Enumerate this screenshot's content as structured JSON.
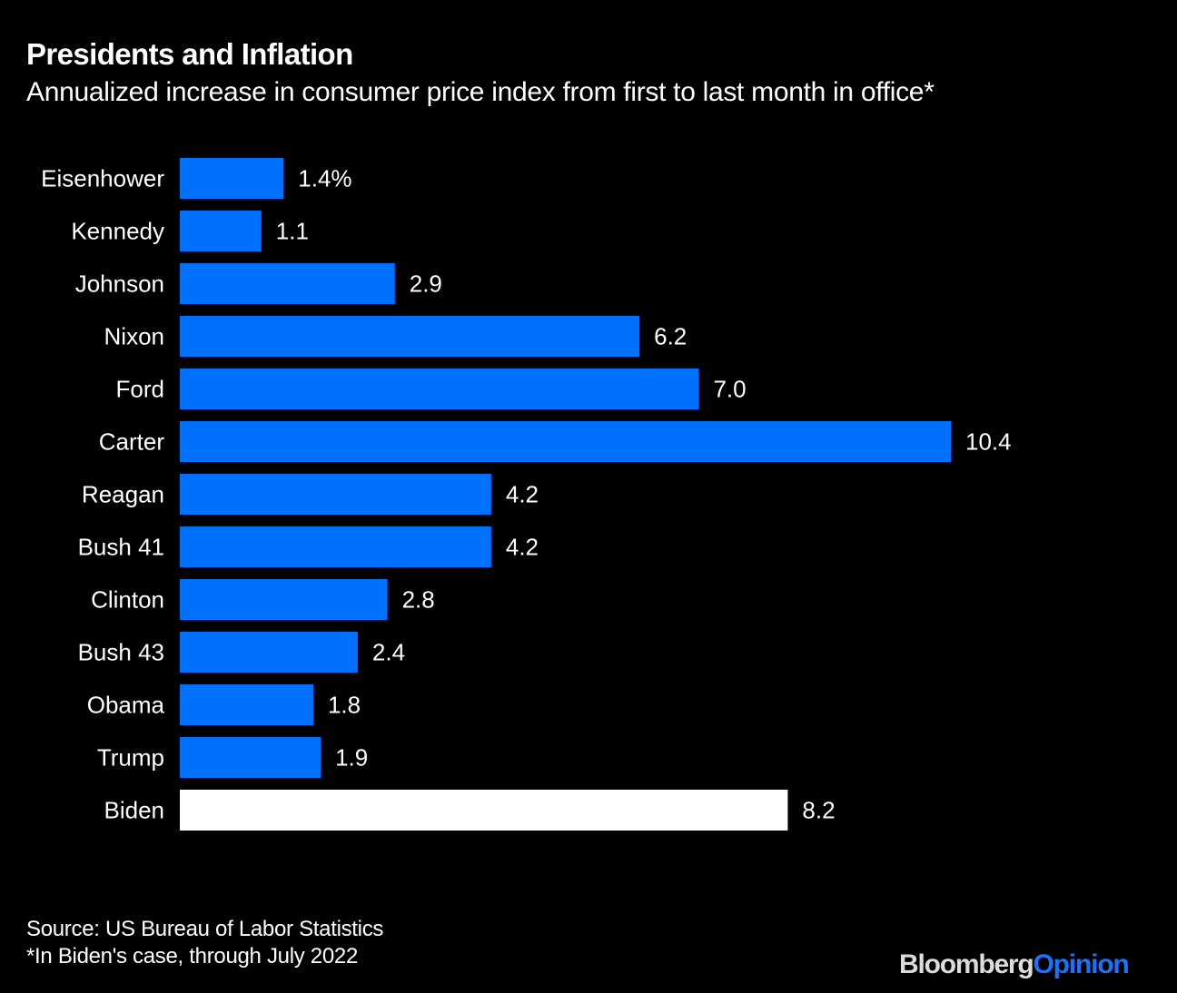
{
  "header": {
    "title": "Presidents and Inflation",
    "subtitle": "Annualized increase in consumer price index from first to last month in office*"
  },
  "footer": {
    "source": "Source: US Bureau of Labor Statistics",
    "note": "*In Biden's case, through July 2022"
  },
  "logo": {
    "brand": "Bloomberg",
    "section": "Opinion"
  },
  "colors": {
    "background": "#000000",
    "bar_default": "#0070ff",
    "bar_highlight": "#ffffff",
    "text": "#ffffff",
    "logo_brand": "#dcdcdc",
    "logo_section": "#1a73ff"
  },
  "chart_data": {
    "type": "bar",
    "orientation": "horizontal",
    "title": "Presidents and Inflation",
    "subtitle": "Annualized increase in consumer price index from first to last month in office*",
    "xlabel": "",
    "ylabel": "",
    "unit": "%",
    "xlim": [
      0,
      10.4
    ],
    "grid": false,
    "legend": "none",
    "categories": [
      "Eisenhower",
      "Kennedy",
      "Johnson",
      "Nixon",
      "Ford",
      "Carter",
      "Reagan",
      "Bush 41",
      "Clinton",
      "Bush 43",
      "Obama",
      "Trump",
      "Biden"
    ],
    "values": [
      1.4,
      1.1,
      2.9,
      6.2,
      7.0,
      10.4,
      4.2,
      4.2,
      2.8,
      2.4,
      1.8,
      1.9,
      8.2
    ],
    "value_labels": [
      "1.4%",
      "1.1",
      "2.9",
      "6.2",
      "7.0",
      "10.4",
      "4.2",
      "4.2",
      "2.8",
      "2.4",
      "1.8",
      "1.9",
      "8.2"
    ],
    "highlight": [
      "Biden"
    ],
    "source": "Source: US Bureau of Labor Statistics",
    "annotation": "*In Biden's case, through July 2022"
  }
}
